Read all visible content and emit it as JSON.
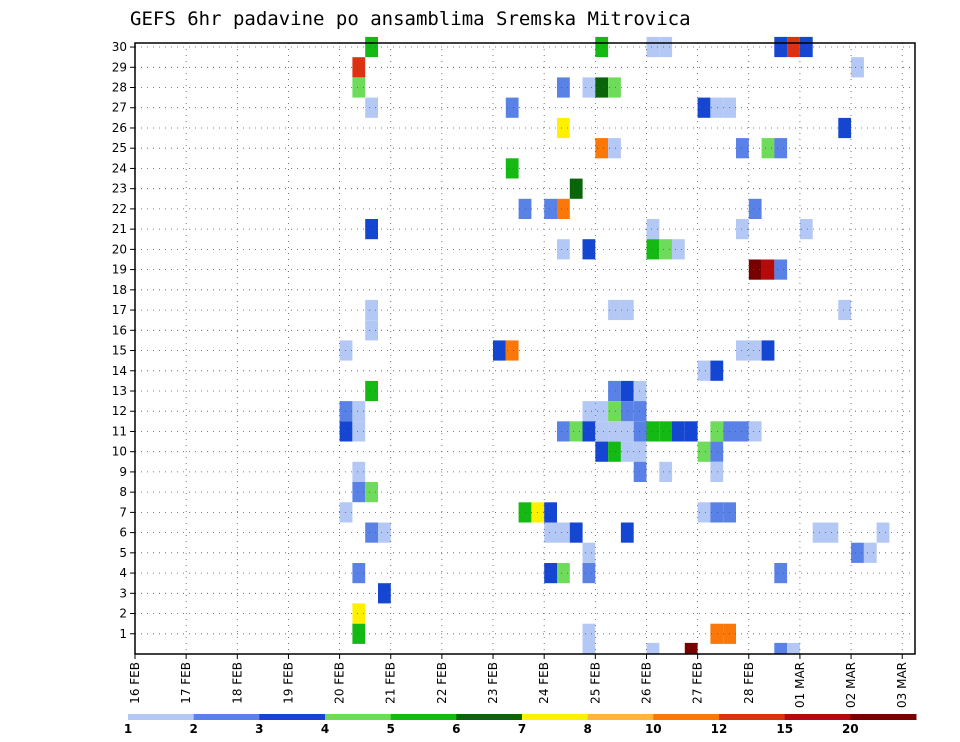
{
  "chart_data": {
    "type": "heatmap",
    "title": "GEFS 6hr padavine po ansamblima Sremska Mitrovica",
    "x_tick_labels": [
      "16 FEB",
      "17 FEB",
      "18 FEB",
      "19 FEB",
      "20 FEB",
      "21 FEB",
      "22 FEB",
      "23 FEB",
      "24 FEB",
      "25 FEB",
      "26 FEB",
      "27 FEB",
      "28 FEB",
      "01 MAR",
      "02 MAR",
      "03 MAR"
    ],
    "y_tick_labels": [
      "1",
      "2",
      "3",
      "4",
      "5",
      "6",
      "7",
      "8",
      "9",
      "10",
      "11",
      "12",
      "13",
      "14",
      "15",
      "16",
      "17",
      "18",
      "19",
      "20",
      "21",
      "22",
      "23",
      "24",
      "25",
      "26",
      "27",
      "28",
      "29",
      "30"
    ],
    "x_range_days": [
      0,
      15.25
    ],
    "y_range": [
      0,
      30
    ],
    "grid": true,
    "colorbar": {
      "labels": [
        "1",
        "2",
        "3",
        "4",
        "5",
        "6",
        "7",
        "8",
        "10",
        "12",
        "15",
        "20"
      ],
      "colors": [
        "#b4c8f5",
        "#5a82e6",
        "#1446d2",
        "#6edc5a",
        "#14b914",
        "#0a640a",
        "#fff000",
        "#ffb43c",
        "#fa780a",
        "#dc3214",
        "#b40a0a",
        "#780000"
      ]
    },
    "cells": [
      [
        4.5,
        30,
        4
      ],
      [
        9.0,
        30,
        4
      ],
      [
        10.0,
        30,
        0
      ],
      [
        10.25,
        30,
        0
      ],
      [
        12.5,
        30,
        2
      ],
      [
        12.75,
        30,
        9
      ],
      [
        13.0,
        30,
        2
      ],
      [
        4.25,
        29,
        9
      ],
      [
        14.0,
        29,
        0
      ],
      [
        4.25,
        28,
        3
      ],
      [
        8.25,
        28,
        1
      ],
      [
        8.75,
        28,
        0
      ],
      [
        9.0,
        28,
        5
      ],
      [
        9.25,
        28,
        3
      ],
      [
        4.5,
        27,
        0
      ],
      [
        7.25,
        27,
        1
      ],
      [
        11.0,
        27,
        2
      ],
      [
        11.25,
        27,
        0
      ],
      [
        11.5,
        27,
        0
      ],
      [
        8.25,
        26,
        6
      ],
      [
        13.75,
        26,
        2
      ],
      [
        9.0,
        25,
        8
      ],
      [
        9.25,
        25,
        0
      ],
      [
        11.75,
        25,
        1
      ],
      [
        12.25,
        25,
        3
      ],
      [
        12.5,
        25,
        1
      ],
      [
        7.25,
        24,
        4
      ],
      [
        8.5,
        23,
        5
      ],
      [
        7.5,
        22,
        1
      ],
      [
        8.0,
        22,
        1
      ],
      [
        8.25,
        22,
        8
      ],
      [
        12.0,
        22,
        1
      ],
      [
        4.5,
        21,
        2
      ],
      [
        10.0,
        21,
        0
      ],
      [
        11.75,
        21,
        0
      ],
      [
        13.0,
        21,
        0
      ],
      [
        8.25,
        20,
        0
      ],
      [
        8.75,
        20,
        2
      ],
      [
        10.0,
        20,
        4
      ],
      [
        10.25,
        20,
        3
      ],
      [
        10.5,
        20,
        0
      ],
      [
        12.0,
        19,
        11
      ],
      [
        12.25,
        19,
        10
      ],
      [
        12.5,
        19,
        1
      ],
      [
        9.25,
        17,
        0
      ],
      [
        9.5,
        17,
        0
      ],
      [
        4.5,
        17,
        0
      ],
      [
        13.75,
        17,
        0
      ],
      [
        4.5,
        16,
        0
      ],
      [
        4.0,
        15,
        0
      ],
      [
        7.0,
        15,
        2
      ],
      [
        7.25,
        15,
        8
      ],
      [
        11.75,
        15,
        0
      ],
      [
        12.0,
        15,
        0
      ],
      [
        12.25,
        15,
        2
      ],
      [
        11.0,
        14,
        0
      ],
      [
        11.25,
        14,
        2
      ],
      [
        4.5,
        13,
        4
      ],
      [
        9.25,
        13,
        1
      ],
      [
        9.5,
        13,
        2
      ],
      [
        9.75,
        13,
        0
      ],
      [
        4.0,
        12,
        1
      ],
      [
        4.25,
        12,
        0
      ],
      [
        8.75,
        12,
        0
      ],
      [
        9.0,
        12,
        0
      ],
      [
        9.25,
        12,
        3
      ],
      [
        9.5,
        12,
        1
      ],
      [
        9.75,
        12,
        1
      ],
      [
        4.0,
        11,
        2
      ],
      [
        4.25,
        11,
        0
      ],
      [
        8.25,
        11,
        1
      ],
      [
        8.5,
        11,
        3
      ],
      [
        8.75,
        11,
        2
      ],
      [
        9.0,
        11,
        0
      ],
      [
        9.25,
        11,
        0
      ],
      [
        9.5,
        11,
        0
      ],
      [
        9.75,
        11,
        1
      ],
      [
        10.0,
        11,
        4
      ],
      [
        10.25,
        11,
        4
      ],
      [
        10.5,
        11,
        2
      ],
      [
        10.75,
        11,
        2
      ],
      [
        11.25,
        11,
        3
      ],
      [
        11.5,
        11,
        1
      ],
      [
        11.75,
        11,
        1
      ],
      [
        12.0,
        11,
        0
      ],
      [
        9.0,
        10,
        2
      ],
      [
        9.25,
        10,
        4
      ],
      [
        9.5,
        10,
        0
      ],
      [
        9.75,
        10,
        0
      ],
      [
        11.0,
        10,
        3
      ],
      [
        11.25,
        10,
        1
      ],
      [
        4.25,
        9,
        0
      ],
      [
        9.75,
        9,
        1
      ],
      [
        10.25,
        9,
        0
      ],
      [
        11.25,
        9,
        0
      ],
      [
        4.25,
        8,
        1
      ],
      [
        4.5,
        8,
        3
      ],
      [
        4.0,
        7,
        0
      ],
      [
        7.5,
        7,
        4
      ],
      [
        7.75,
        7,
        6
      ],
      [
        8.0,
        7,
        2
      ],
      [
        11.0,
        7,
        0
      ],
      [
        11.25,
        7,
        1
      ],
      [
        11.5,
        7,
        1
      ],
      [
        4.5,
        6,
        1
      ],
      [
        4.75,
        6,
        0
      ],
      [
        8.0,
        6,
        0
      ],
      [
        8.25,
        6,
        0
      ],
      [
        8.5,
        6,
        2
      ],
      [
        9.5,
        6,
        2
      ],
      [
        13.25,
        6,
        0
      ],
      [
        13.5,
        6,
        0
      ],
      [
        14.5,
        6,
        0
      ],
      [
        8.75,
        5,
        0
      ],
      [
        14.0,
        5,
        1
      ],
      [
        14.25,
        5,
        0
      ],
      [
        4.25,
        4,
        1
      ],
      [
        8.0,
        4,
        2
      ],
      [
        8.25,
        4,
        3
      ],
      [
        8.75,
        4,
        1
      ],
      [
        12.5,
        4,
        1
      ],
      [
        4.75,
        3,
        2
      ],
      [
        4.25,
        2,
        6
      ],
      [
        4.25,
        1,
        4
      ],
      [
        11.25,
        1,
        8
      ],
      [
        11.5,
        1,
        8
      ],
      [
        8.75,
        1,
        0
      ],
      [
        8.75,
        0,
        0
      ],
      [
        10.0,
        0,
        0
      ],
      [
        10.75,
        0,
        11
      ],
      [
        12.5,
        0,
        1
      ],
      [
        12.75,
        0,
        0
      ]
    ]
  }
}
